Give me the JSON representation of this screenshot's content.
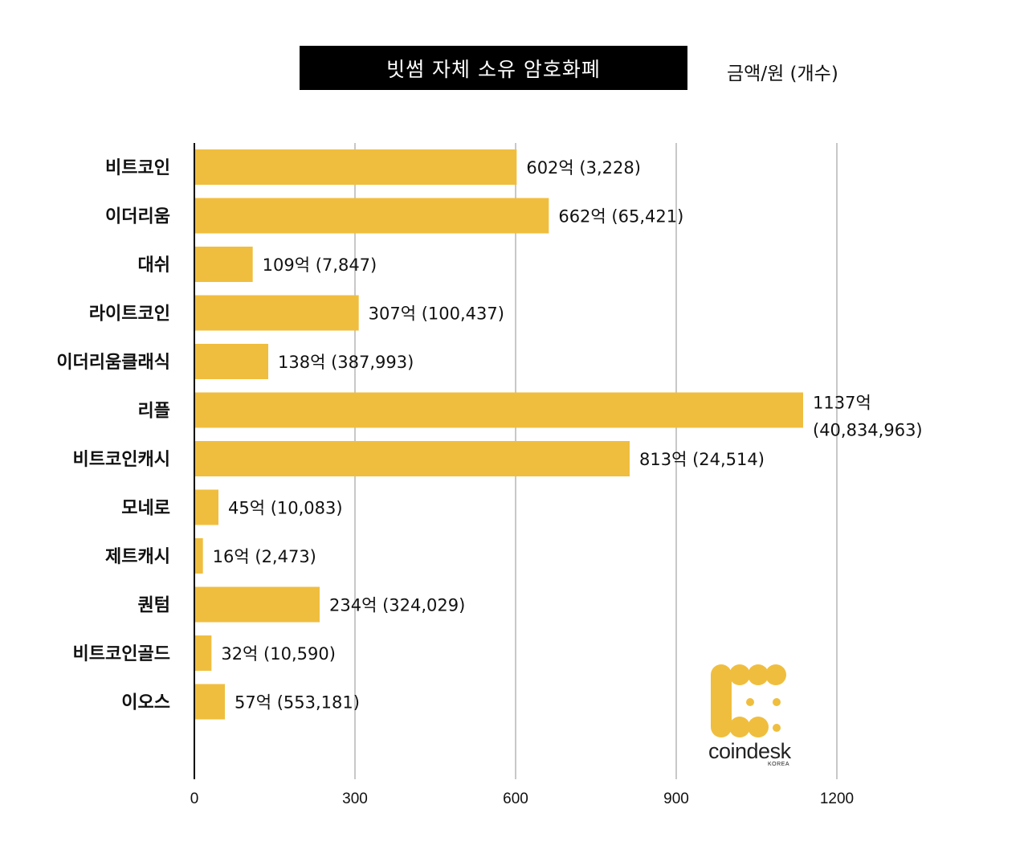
{
  "title": "빗썸 자체 소유 암호화폐",
  "unit_label": "금액/원 (개수)",
  "logo": {
    "name": "coindesk",
    "sub": "KOREA",
    "color": "#F0BE3E"
  },
  "chart_data": {
    "type": "bar",
    "orientation": "horizontal",
    "bar_color": "#F0BE3E",
    "grid_color": "#C8C8C8",
    "xlim": [
      0,
      1200
    ],
    "xticks": [
      0,
      300,
      600,
      900,
      1200
    ],
    "grid": true,
    "categories": [
      "비트코인",
      "이더리움",
      "대쉬",
      "라이트코인",
      "이더리움클래식",
      "리플",
      "비트코인캐시",
      "모네로",
      "제트캐시",
      "퀀텀",
      "비트코인골드",
      "이오스"
    ],
    "values": [
      602,
      662,
      109,
      307,
      138,
      1137,
      813,
      45,
      16,
      234,
      32,
      57
    ],
    "labels": [
      [
        "602억 (3,228)"
      ],
      [
        "662억 (65,421)"
      ],
      [
        "109억 (7,847)"
      ],
      [
        "307억 (100,437)"
      ],
      [
        "138억 (387,993)"
      ],
      [
        "1137억",
        "(40,834,963)"
      ],
      [
        "813억 (24,514)"
      ],
      [
        "45억 (10,083)"
      ],
      [
        "16억 (2,473)"
      ],
      [
        "234억 (324,029)"
      ],
      [
        "32억 (10,590)"
      ],
      [
        "57억 (553,181)"
      ]
    ]
  }
}
